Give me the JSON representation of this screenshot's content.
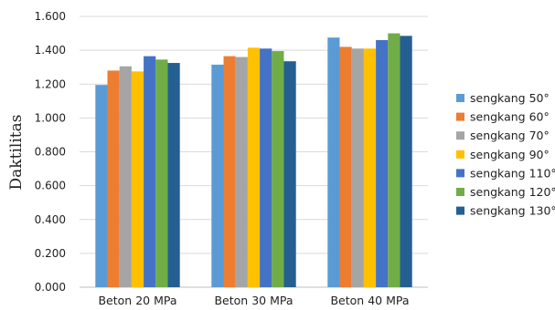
{
  "chart_data": {
    "type": "bar",
    "title": "",
    "xlabel": "",
    "ylabel": "Daktilitas",
    "ylim": [
      0,
      1.6
    ],
    "yticks": [
      "0.000",
      "0.200",
      "0.400",
      "0.600",
      "0.800",
      "1.000",
      "1.200",
      "1.400",
      "1.600"
    ],
    "grid": true,
    "legend_position": "right",
    "categories": [
      "Beton 20 MPa",
      "Beton 30 MPa",
      "Beton 40 MPa"
    ],
    "series": [
      {
        "name": "sengkang 50°",
        "color": "#5B9BD5",
        "values": [
          1.195,
          1.315,
          1.475
        ]
      },
      {
        "name": "sengkang 60°",
        "color": "#ED7D31",
        "values": [
          1.28,
          1.365,
          1.42
        ]
      },
      {
        "name": "sengkang 70°",
        "color": "#A5A5A5",
        "values": [
          1.305,
          1.36,
          1.41
        ]
      },
      {
        "name": "sengkang 90°",
        "color": "#FFC000",
        "values": [
          1.275,
          1.415,
          1.41
        ]
      },
      {
        "name": "sengkang 110°",
        "color": "#4472C4",
        "values": [
          1.365,
          1.41,
          1.46
        ]
      },
      {
        "name": "sengkang 120°",
        "color": "#70AD47",
        "values": [
          1.345,
          1.395,
          1.5
        ]
      },
      {
        "name": "sengkang 130°",
        "color": "#255E91",
        "values": [
          1.325,
          1.335,
          1.485
        ]
      }
    ]
  }
}
